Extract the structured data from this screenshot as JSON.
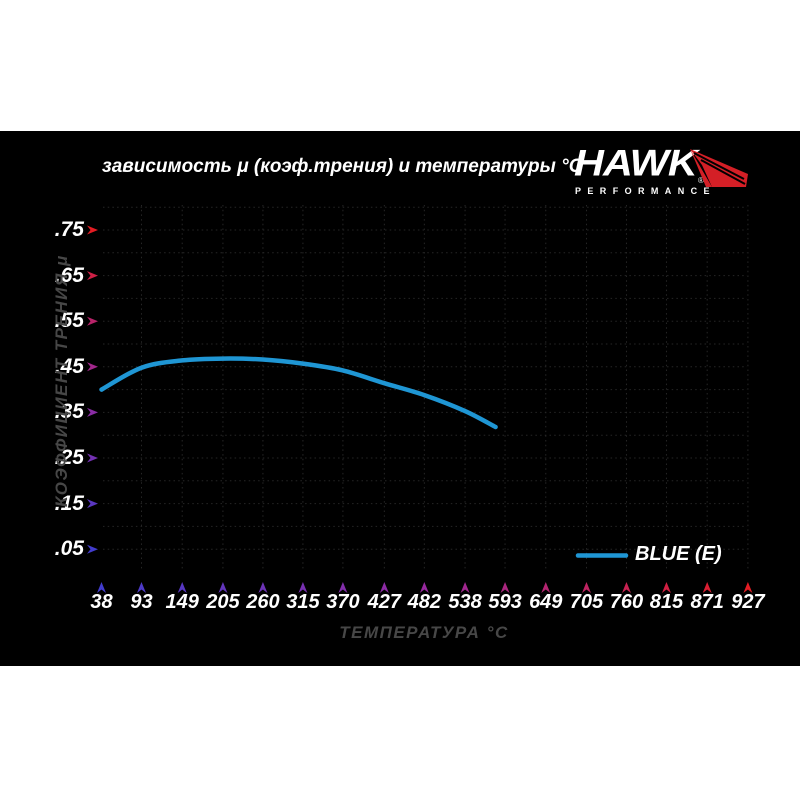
{
  "title": "зависимость μ (коэф.трения) и температуры °C",
  "logo": {
    "name": "HAWK",
    "registered": "®",
    "subtitle": "PERFORMANCE",
    "red": "#d41f26"
  },
  "axes": {
    "y_title": "КОЭФФИЦИЕНТ ТРЕНИЯ μ",
    "x_title": "ТЕМПЕРАТУРА °C",
    "y_tick_labels": [
      ".75",
      ".65",
      ".55",
      ".45",
      ".35",
      ".25",
      ".15",
      ".05"
    ],
    "x_tick_labels": [
      "38",
      "93",
      "149",
      "205",
      "260",
      "315",
      "370",
      "427",
      "482",
      "538",
      "593",
      "649",
      "705",
      "760",
      "815",
      "871",
      "927"
    ],
    "gradient_blue": "#423ccd",
    "gradient_purple": "#97299e",
    "gradient_red": "#e41c23",
    "grid_color": "#262626"
  },
  "legend": {
    "label": "BLUE (E)",
    "color": "#1f96d4"
  },
  "colors": {
    "panel_bg": "#000000",
    "page_bg": "#ffffff",
    "text_white": "#ffffff",
    "text_gray": "#474747"
  },
  "chart_data": {
    "type": "line",
    "title": "зависимость μ (коэф.трения) и температуры °C",
    "xlabel": "ТЕМПЕРАТУРА °C",
    "ylabel": "КОЭФФИЦИЕНТ ТРЕНИЯ μ",
    "x_ticks": [
      38,
      93,
      149,
      205,
      260,
      315,
      370,
      427,
      482,
      538,
      593,
      649,
      705,
      760,
      815,
      871,
      927
    ],
    "y_ticks": [
      0.05,
      0.15,
      0.25,
      0.35,
      0.45,
      0.55,
      0.65,
      0.75
    ],
    "xlim": [
      38,
      927
    ],
    "ylim": [
      0,
      0.815
    ],
    "grid": "dotted dark-gray; vertical at every x tick, horizontal every 0.05",
    "legend_position": "lower right",
    "series": [
      {
        "name": "BLUE (E)",
        "color": "#1f96d4",
        "x": [
          38,
          93,
          149,
          205,
          260,
          315,
          370,
          427,
          482,
          538,
          580
        ],
        "y": [
          0.4,
          0.448,
          0.464,
          0.468,
          0.466,
          0.457,
          0.442,
          0.414,
          0.388,
          0.353,
          0.318
        ]
      }
    ]
  }
}
